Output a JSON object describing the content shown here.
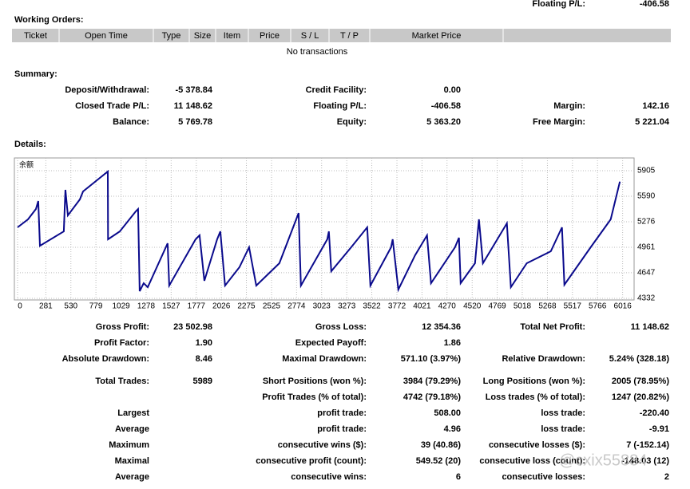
{
  "header": {
    "label": "Floating P/L:",
    "value": "-406.58"
  },
  "working_orders": {
    "title": "Working Orders:",
    "columns": [
      "Ticket",
      "Open Time",
      "Type",
      "Size",
      "Item",
      "Price",
      "S / L",
      "T / P",
      "Market Price"
    ],
    "empty": "No transactions"
  },
  "summary": {
    "title": "Summary:",
    "rows": [
      {
        "left": {
          "label": "Deposit/Withdrawal:",
          "value": "-5 378.84"
        },
        "middle": {
          "label": "Credit Facility:",
          "value": "0.00"
        }
      },
      {
        "left": {
          "label": "Closed Trade P/L:",
          "value": "11 148.62"
        },
        "middle": {
          "label": "Floating P/L:",
          "value": "-406.58"
        },
        "right": {
          "label": "Margin:",
          "value": "142.16"
        }
      },
      {
        "left": {
          "label": "Balance:",
          "value": "5 769.78"
        },
        "middle": {
          "label": "Equity:",
          "value": "5 363.20"
        },
        "right": {
          "label": "Free Margin:",
          "value": "5 221.04"
        }
      }
    ]
  },
  "details": {
    "title": "Details:"
  },
  "chart_data": {
    "type": "line",
    "label": "余额",
    "color": "#0a0a8c",
    "grid": true,
    "x": [
      0,
      103,
      183,
      206,
      222,
      460,
      476,
      500,
      619,
      651,
      897,
      900,
      1016,
      1175,
      1198,
      1214,
      1254,
      1294,
      1492,
      1508,
      1770,
      1810,
      1857,
      1984,
      2016,
      2063,
      2206,
      2302,
      2373,
      2603,
      2794,
      2817,
      3079,
      3095,
      3119,
      3317,
      3476,
      3508,
      3714,
      3730,
      3786,
      3952,
      4071,
      4111,
      4349,
      4389,
      4405,
      4548,
      4587,
      4627,
      4865,
      4905,
      5063,
      5302,
      5413,
      5437,
      5698,
      5897,
      5989
    ],
    "values": [
      5207,
      5305,
      5433,
      5531,
      4980,
      5157,
      5669,
      5354,
      5551,
      5649,
      5895,
      5059,
      5157,
      5403,
      5433,
      4420,
      4518,
      4469,
      5010,
      4489,
      5059,
      5108,
      4548,
      5059,
      5157,
      4489,
      4715,
      4961,
      4489,
      4764,
      5383,
      4489,
      5059,
      5157,
      4666,
      4961,
      5207,
      4489,
      4961,
      5059,
      4440,
      4862,
      5108,
      4518,
      4961,
      5079,
      4518,
      4764,
      5305,
      4764,
      5256,
      4469,
      4764,
      4912,
      5207,
      4499,
      4961,
      5305,
      5770
    ],
    "xlim": [
      0,
      6130
    ],
    "ylim": [
      4312,
      6062
    ],
    "xticks": [
      0,
      281,
      530,
      779,
      1029,
      1278,
      1527,
      1777,
      2026,
      2275,
      2525,
      2774,
      3023,
      3273,
      3522,
      3772,
      4021,
      4270,
      4520,
      4769,
      5018,
      5268,
      5517,
      5766,
      6016
    ],
    "yticks": [
      4332,
      4647,
      4961,
      5276,
      5590,
      5905
    ]
  },
  "stats": [
    {
      "left": {
        "label": "Gross Profit:",
        "value": "23 502.98"
      },
      "middle": {
        "label": "Gross Loss:",
        "value": "12 354.36"
      },
      "right": {
        "label": "Total Net Profit:",
        "value": "11 148.62"
      }
    },
    {
      "left": {
        "label": "Profit Factor:",
        "value": "1.90"
      },
      "middle": {
        "label": "Expected Payoff:",
        "value": "1.86"
      }
    },
    {
      "left": {
        "label": "Absolute Drawdown:",
        "value": "8.46"
      },
      "middle": {
        "label": "Maximal Drawdown:",
        "value": "571.10 (3.97%)"
      },
      "right": {
        "label": "Relative Drawdown:",
        "value": "5.24% (328.18)"
      }
    },
    {
      "left": {
        "label": "Total Trades:",
        "value": "5989"
      },
      "middle": {
        "label": "Short Positions (won %):",
        "value": "3984 (79.29%)"
      },
      "right": {
        "label": "Long Positions (won %):",
        "value": "2005 (78.95%)"
      }
    },
    {
      "middle": {
        "label": "Profit Trades (% of total):",
        "value": "4742 (79.18%)"
      },
      "right": {
        "label": "Loss trades (% of total):",
        "value": "1247 (20.82%)"
      }
    },
    {
      "left": {
        "label": "Largest"
      },
      "middle": {
        "label": "profit trade:",
        "value": "508.00"
      },
      "right": {
        "label": "loss trade:",
        "value": "-220.40"
      }
    },
    {
      "left": {
        "label": "Average"
      },
      "middle": {
        "label": "profit trade:",
        "value": "4.96"
      },
      "right": {
        "label": "loss trade:",
        "value": "-9.91"
      }
    },
    {
      "left": {
        "label": "Maximum"
      },
      "middle": {
        "label": "consecutive wins ($):",
        "value": "39 (40.86)"
      },
      "right": {
        "label": "consecutive losses ($):",
        "value": "7 (-152.14)"
      }
    },
    {
      "left": {
        "label": "Maximal"
      },
      "middle": {
        "label": "consecutive profit (count):",
        "value": "549.52 (20)"
      },
      "right": {
        "label": "consecutive loss (count):",
        "value": "-148.03 (12)"
      }
    },
    {
      "left": {
        "label": "Average"
      },
      "middle": {
        "label": "consecutive wins:",
        "value": "6"
      },
      "right": {
        "label": "consecutive losses:",
        "value": "2"
      }
    }
  ],
  "watermark": "@cxix55884"
}
